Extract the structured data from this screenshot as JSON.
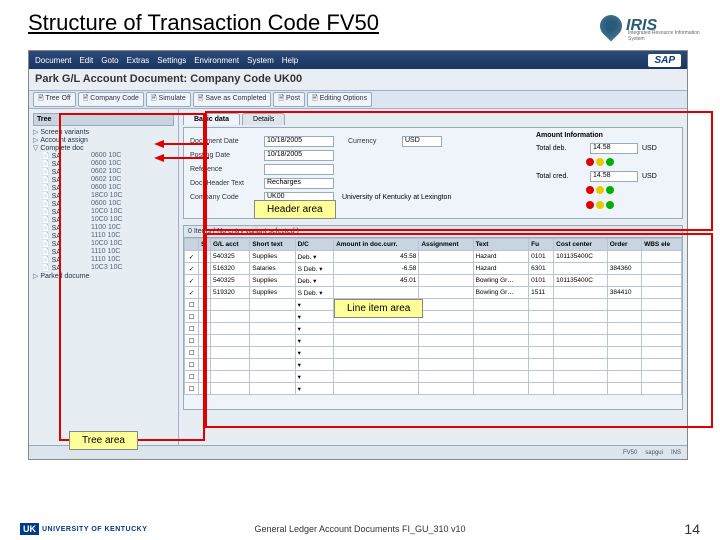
{
  "slide": {
    "title": "Structure of Transaction Code FV50",
    "footer_text": "General Ledger Account Documents FI_GU_310 v10",
    "page_number": "14",
    "uk_label": "UNIVERSITY OF KENTUCKY",
    "uk_badge": "UK"
  },
  "iris": {
    "label": "IRIS",
    "sub": "Integrated Resource Information System"
  },
  "sap": {
    "menu": [
      "Document",
      "Edit",
      "Goto",
      "Extras",
      "Settings",
      "Environment",
      "System",
      "Help"
    ],
    "badge": "SAP",
    "subtitle": "Park G/L Account Document: Company Code UK00",
    "toolbar": [
      "Tree Off",
      "Company Code",
      "Simulate",
      "Save as Completed",
      "Post",
      "Editing Options"
    ]
  },
  "tree": {
    "header": "Tree",
    "root": "Screen variants",
    "root2": "Account assign",
    "root3": "Complete doc",
    "items": [
      {
        "lab": "SA",
        "code": "0600 10C"
      },
      {
        "lab": "SA",
        "code": "0600 10C"
      },
      {
        "lab": "SA",
        "code": "0602 10C"
      },
      {
        "lab": "SA",
        "code": "0602 10C"
      },
      {
        "lab": "SA",
        "code": "0600 10C"
      },
      {
        "lab": "SA",
        "code": "18C0 10C"
      },
      {
        "lab": "SA",
        "code": "0600 10C"
      },
      {
        "lab": "SA",
        "code": "10C0 10C"
      },
      {
        "lab": "SA",
        "code": "10C0 10C"
      },
      {
        "lab": "SA",
        "code": "1100 10C"
      },
      {
        "lab": "SA",
        "code": "1110 10C"
      },
      {
        "lab": "SA",
        "code": "10C0 10C"
      },
      {
        "lab": "SA",
        "code": "1110 10C"
      },
      {
        "lab": "SA",
        "code": "1110 10C"
      },
      {
        "lab": "SA",
        "code": "10C3 10C"
      }
    ],
    "root4": "Parked docume"
  },
  "tabs": {
    "basic": "Basic data",
    "details": "Details"
  },
  "header": {
    "fields": [
      {
        "label": "Document Date",
        "value": "10/18/2005",
        "col2label": "Currency",
        "col2value": "USD"
      },
      {
        "label": "Posting Date",
        "value": "10/18/2005",
        "col2label": "",
        "col2value": ""
      },
      {
        "label": "Reference",
        "value": "",
        "col2label": "",
        "col2value": ""
      },
      {
        "label": "Doc. Header Text",
        "value": "Recharges",
        "col2label": "",
        "col2value": ""
      },
      {
        "label": "Company Code",
        "value": "UK00",
        "desc": "University of Kentucky at Lexington"
      }
    ],
    "amount": {
      "title": "Amount Information",
      "rows": [
        {
          "label": "Total deb.",
          "val": "14.58",
          "curr": "USD"
        },
        {
          "label": "Total cred.",
          "val": "14.58",
          "curr": "USD"
        }
      ]
    },
    "traffic_colors": [
      "#e00000",
      "#e8c800",
      "#00b000"
    ],
    "callout": "Header area"
  },
  "items": {
    "title": "0 Items ( No entry variant selected )",
    "columns": [
      "",
      "S",
      "G/L acct",
      "Short text",
      "D/C",
      "Amount in doc.curr.",
      "Assignment",
      "Text",
      "Fu",
      "Cost center",
      "Order",
      "WBS ele"
    ],
    "rows": [
      {
        "chk": "✓",
        "s": "",
        "gl": "540325",
        "st": "Supplies",
        "dc": "Deb.",
        "amt": "45.58",
        "asg": "",
        "txt": "Hazard",
        "fu": "0101",
        "cc": "101135400C",
        "ord": "",
        "wbs": ""
      },
      {
        "chk": "✓",
        "s": "",
        "gl": "516320",
        "st": "Salaries",
        "dc": "S Deb.",
        "amt": "-6.58",
        "asg": "",
        "txt": "Hazard",
        "fu": "6301",
        "cc": "",
        "ord": "384360",
        "wbs": ""
      },
      {
        "chk": "✓",
        "s": "",
        "gl": "540325",
        "st": "Supplies",
        "dc": "Deb.",
        "amt": "45.01",
        "asg": "",
        "txt": "Bowling Gr…",
        "fu": "0101",
        "cc": "101135400C",
        "ord": "",
        "wbs": ""
      },
      {
        "chk": "✓",
        "s": "",
        "gl": "519320",
        "st": "Supplies",
        "dc": "S Deb.",
        "amt": "",
        "asg": "",
        "txt": "Bowling Gr…",
        "fu": "1511",
        "cc": "",
        "ord": "384410",
        "wbs": ""
      }
    ],
    "blank_rows": 8,
    "callout": "Line item area"
  },
  "tree_callout": "Tree area",
  "status": {
    "items": [
      "",
      "FV50",
      "sapgui",
      "INS"
    ]
  },
  "colors": {
    "red": "#e00000",
    "yellow_box": "#ffff99"
  }
}
